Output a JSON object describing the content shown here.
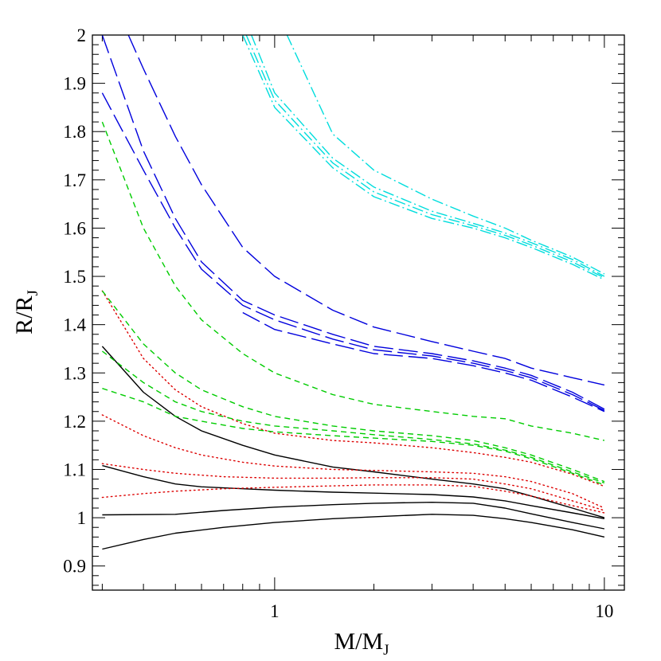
{
  "chart_data": {
    "type": "line",
    "title": "",
    "xlabel": {
      "main": "M/M",
      "sub": "J"
    },
    "ylabel": {
      "main": "R/R",
      "sub": "J"
    },
    "xscale": "log",
    "xlim": [
      0.28,
      11.5
    ],
    "ylim": [
      0.85,
      2.0
    ],
    "x_ticks": [
      {
        "value": 1,
        "label": "1"
      },
      {
        "value": 10,
        "label": "10"
      }
    ],
    "y_ticks": [
      {
        "value": 0.9,
        "label": "0.9"
      },
      {
        "value": 1.0,
        "label": "1"
      },
      {
        "value": 1.1,
        "label": "1.1"
      },
      {
        "value": 1.2,
        "label": "1.2"
      },
      {
        "value": 1.3,
        "label": "1.3"
      },
      {
        "value": 1.4,
        "label": "1.4"
      },
      {
        "value": 1.5,
        "label": "1.5"
      },
      {
        "value": 1.6,
        "label": "1.6"
      },
      {
        "value": 1.7,
        "label": "1.7"
      },
      {
        "value": 1.8,
        "label": "1.8"
      },
      {
        "value": 1.9,
        "label": "1.9"
      },
      {
        "value": 2.0,
        "label": "2"
      }
    ],
    "grid": false,
    "legend": "none",
    "series": [
      {
        "group": "solid",
        "color": "#000000",
        "style": "solid",
        "x": [
          0.3,
          0.4,
          0.5,
          0.6,
          0.8,
          1.0,
          1.5,
          2,
          3,
          4,
          5,
          6,
          8,
          10
        ],
        "y": [
          1.355,
          1.26,
          1.21,
          1.18,
          1.15,
          1.13,
          1.105,
          1.095,
          1.08,
          1.07,
          1.06,
          1.045,
          1.02,
          1.0
        ]
      },
      {
        "group": "solid",
        "color": "#000000",
        "style": "solid",
        "x": [
          0.3,
          0.4,
          0.5,
          0.6,
          0.8,
          1.0,
          1.5,
          2,
          3,
          4,
          5,
          6,
          8,
          10
        ],
        "y": [
          1.108,
          1.085,
          1.07,
          1.064,
          1.06,
          1.057,
          1.053,
          1.051,
          1.048,
          1.043,
          1.035,
          1.025,
          1.01,
          0.998
        ]
      },
      {
        "group": "solid",
        "color": "#000000",
        "style": "solid",
        "x": [
          0.3,
          0.5,
          0.7,
          1.0,
          1.5,
          2,
          3,
          4,
          5,
          6,
          8,
          10
        ],
        "y": [
          1.006,
          1.007,
          1.015,
          1.022,
          1.027,
          1.03,
          1.032,
          1.03,
          1.02,
          1.008,
          0.99,
          0.977
        ]
      },
      {
        "group": "solid",
        "color": "#000000",
        "style": "solid",
        "x": [
          0.3,
          0.4,
          0.5,
          0.7,
          1.0,
          1.5,
          2,
          3,
          4,
          5,
          6,
          8,
          10
        ],
        "y": [
          0.935,
          0.955,
          0.968,
          0.98,
          0.99,
          0.998,
          1.002,
          1.007,
          1.005,
          0.998,
          0.99,
          0.975,
          0.96
        ]
      },
      {
        "group": "dotted",
        "color": "#dd0000",
        "style": "dotted",
        "x": [
          0.3,
          0.4,
          0.5,
          0.6,
          0.8,
          1.0,
          1.5,
          2,
          3,
          4,
          5,
          6,
          8,
          10
        ],
        "y": [
          1.47,
          1.33,
          1.265,
          1.23,
          1.195,
          1.175,
          1.16,
          1.155,
          1.145,
          1.135,
          1.125,
          1.115,
          1.09,
          1.065
        ]
      },
      {
        "group": "dotted",
        "color": "#dd0000",
        "style": "dotted",
        "x": [
          0.3,
          0.4,
          0.5,
          0.6,
          0.8,
          1.0,
          1.5,
          2,
          3,
          4,
          5,
          6,
          8,
          10
        ],
        "y": [
          1.213,
          1.17,
          1.145,
          1.13,
          1.115,
          1.107,
          1.1,
          1.098,
          1.095,
          1.092,
          1.085,
          1.075,
          1.05,
          1.02
        ]
      },
      {
        "group": "dotted",
        "color": "#dd0000",
        "style": "dotted",
        "x": [
          0.3,
          0.4,
          0.5,
          0.7,
          1.0,
          1.5,
          2,
          3,
          4,
          5,
          6,
          8,
          10
        ],
        "y": [
          1.112,
          1.1,
          1.092,
          1.085,
          1.082,
          1.082,
          1.083,
          1.083,
          1.08,
          1.07,
          1.06,
          1.035,
          1.015
        ]
      },
      {
        "group": "dotted",
        "color": "#dd0000",
        "style": "dotted",
        "x": [
          0.3,
          0.4,
          0.5,
          0.7,
          1.0,
          1.5,
          2,
          3,
          4,
          5,
          6,
          8,
          10
        ],
        "y": [
          1.042,
          1.05,
          1.055,
          1.06,
          1.063,
          1.066,
          1.068,
          1.068,
          1.065,
          1.055,
          1.045,
          1.025,
          1.01
        ]
      },
      {
        "group": "short-dash",
        "color": "#00cc00",
        "style": "short-dash",
        "x": [
          0.3,
          0.4,
          0.5,
          0.6,
          0.8,
          1.0,
          1.5,
          2,
          3,
          4,
          5,
          6,
          8,
          10
        ],
        "y": [
          1.82,
          1.6,
          1.48,
          1.41,
          1.34,
          1.3,
          1.255,
          1.235,
          1.22,
          1.21,
          1.205,
          1.19,
          1.175,
          1.16
        ]
      },
      {
        "group": "short-dash",
        "color": "#00cc00",
        "style": "short-dash",
        "x": [
          0.3,
          0.4,
          0.5,
          0.6,
          0.8,
          1.0,
          1.5,
          2,
          3,
          4,
          5,
          6,
          8,
          10
        ],
        "y": [
          1.47,
          1.36,
          1.3,
          1.265,
          1.23,
          1.21,
          1.19,
          1.18,
          1.17,
          1.16,
          1.145,
          1.13,
          1.1,
          1.075
        ]
      },
      {
        "group": "short-dash",
        "color": "#00cc00",
        "style": "short-dash",
        "x": [
          0.3,
          0.4,
          0.5,
          0.6,
          0.8,
          1.0,
          1.5,
          2,
          3,
          4,
          5,
          6,
          8,
          10
        ],
        "y": [
          1.345,
          1.28,
          1.24,
          1.22,
          1.2,
          1.19,
          1.18,
          1.172,
          1.162,
          1.153,
          1.14,
          1.125,
          1.095,
          1.072
        ]
      },
      {
        "group": "short-dash",
        "color": "#00cc00",
        "style": "short-dash",
        "x": [
          0.3,
          0.4,
          0.5,
          0.6,
          0.8,
          1.0,
          1.5,
          2,
          3,
          4,
          5,
          6,
          8,
          10
        ],
        "y": [
          1.268,
          1.24,
          1.21,
          1.2,
          1.185,
          1.178,
          1.17,
          1.165,
          1.158,
          1.15,
          1.138,
          1.122,
          1.092,
          1.068
        ]
      },
      {
        "group": "long-dash",
        "color": "#0000dd",
        "style": "long-dash",
        "x": [
          0.36,
          0.4,
          0.5,
          0.6,
          0.8,
          1.0,
          1.5,
          2,
          3,
          4,
          5,
          6,
          8,
          10
        ],
        "y": [
          2.0,
          1.93,
          1.79,
          1.69,
          1.56,
          1.5,
          1.43,
          1.395,
          1.365,
          1.345,
          1.33,
          1.31,
          1.29,
          1.275
        ]
      },
      {
        "group": "long-dash",
        "color": "#0000dd",
        "style": "long-dash",
        "x": [
          0.3,
          0.4,
          0.5,
          0.6,
          0.8,
          1.0,
          1.5,
          2,
          3,
          4,
          5,
          6,
          8,
          10
        ],
        "y": [
          2.0,
          1.76,
          1.62,
          1.53,
          1.45,
          1.42,
          1.38,
          1.355,
          1.34,
          1.325,
          1.31,
          1.295,
          1.26,
          1.225
        ]
      },
      {
        "group": "long-dash",
        "color": "#0000dd",
        "style": "long-dash",
        "x": [
          0.3,
          0.4,
          0.5,
          0.6,
          0.8,
          1.0,
          1.5,
          2,
          3,
          4,
          5,
          6,
          8,
          10
        ],
        "y": [
          1.88,
          1.72,
          1.6,
          1.515,
          1.44,
          1.41,
          1.37,
          1.348,
          1.335,
          1.32,
          1.305,
          1.29,
          1.255,
          1.222
        ]
      },
      {
        "group": "long-dash",
        "color": "#0000dd",
        "style": "long-dash",
        "x": [
          0.8,
          1.0,
          1.5,
          2,
          3,
          4,
          5,
          6,
          8,
          10
        ],
        "y": [
          1.425,
          1.39,
          1.36,
          1.34,
          1.33,
          1.315,
          1.3,
          1.285,
          1.25,
          1.22
        ]
      },
      {
        "group": "dot-dash",
        "color": "#00dddd",
        "style": "dot-dash",
        "x": [
          1.09,
          1.5,
          2,
          3,
          4,
          5,
          6,
          8,
          10
        ],
        "y": [
          2.0,
          1.795,
          1.72,
          1.66,
          1.625,
          1.6,
          1.575,
          1.54,
          1.505
        ]
      },
      {
        "group": "dot-dash",
        "color": "#00dddd",
        "style": "dot-dash",
        "x": [
          0.85,
          1.0,
          1.5,
          2,
          3,
          4,
          5,
          6,
          8,
          10
        ],
        "y": [
          2.0,
          1.88,
          1.745,
          1.685,
          1.635,
          1.61,
          1.59,
          1.57,
          1.535,
          1.5
        ]
      },
      {
        "group": "dot-dash",
        "color": "#00dddd",
        "style": "dot-dash",
        "x": [
          0.82,
          1.0,
          1.5,
          2,
          3,
          4,
          5,
          6,
          8,
          10
        ],
        "y": [
          2.0,
          1.865,
          1.735,
          1.675,
          1.628,
          1.605,
          1.585,
          1.565,
          1.53,
          1.497
        ]
      },
      {
        "group": "dot-dash",
        "color": "#00dddd",
        "style": "dot-dash",
        "x": [
          0.8,
          1.0,
          1.5,
          2,
          3,
          4,
          5,
          6,
          8,
          10
        ],
        "y": [
          2.0,
          1.85,
          1.725,
          1.665,
          1.62,
          1.6,
          1.58,
          1.56,
          1.525,
          1.493
        ]
      }
    ]
  }
}
